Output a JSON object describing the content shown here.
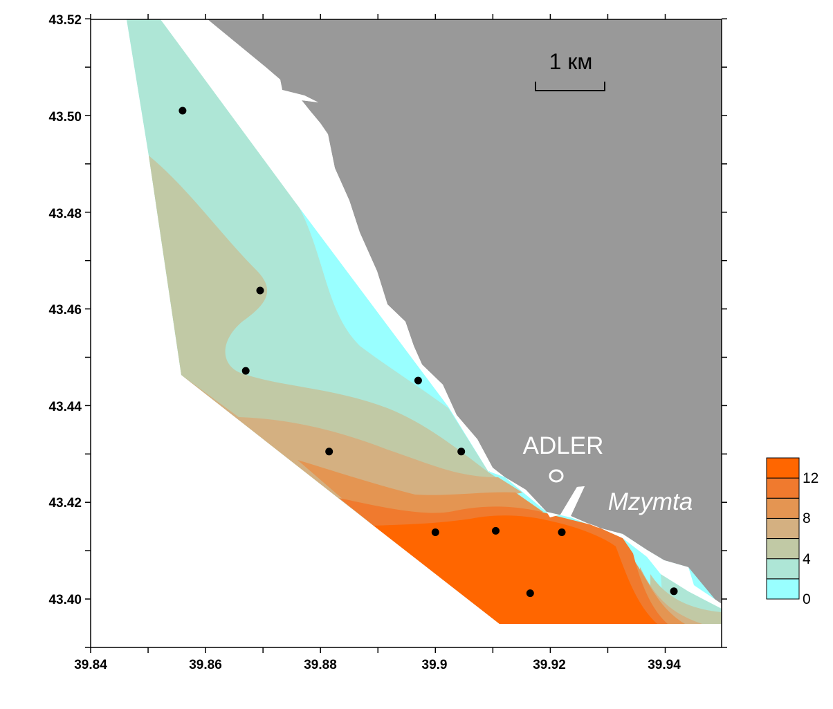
{
  "colors": {
    "land": "#999999",
    "background": "#ffffff",
    "frame": "#000000",
    "station": "#000000",
    "label_on_land": "#ffffff",
    "bands": [
      "#99ffff",
      "#aee6d6",
      "#c1c9a5",
      "#d4b081",
      "#e49552",
      "#f07a2e",
      "#ff6600"
    ]
  },
  "axes": {
    "x_ticks": [
      "39.84",
      "39.86",
      "39.88",
      "39.9",
      "39.92",
      "39.94"
    ],
    "y_ticks": [
      "43.52",
      "43.50",
      "43.48",
      "43.46",
      "43.44",
      "43.42",
      "43.40"
    ],
    "xlim": [
      39.84,
      39.95
    ],
    "ylim": [
      43.39,
      43.52
    ]
  },
  "legend": {
    "labels": [
      "12",
      "8",
      "4",
      "0"
    ],
    "colors_bottom_to_top": [
      "#99ffff",
      "#aee6d6",
      "#c1c9a5",
      "#d4b081",
      "#e49552",
      "#f07a2e",
      "#ff6600"
    ]
  },
  "annotations": {
    "town": "ADLER",
    "river": "Mzymta",
    "scale_bar": "1 км"
  },
  "stations": [
    {
      "lon": 39.856,
      "lat": 43.501
    },
    {
      "lon": 39.8695,
      "lat": 43.4638
    },
    {
      "lon": 39.867,
      "lat": 43.4472
    },
    {
      "lon": 39.897,
      "lat": 43.4452
    },
    {
      "lon": 39.8815,
      "lat": 43.4305
    },
    {
      "lon": 39.9045,
      "lat": 43.4305
    },
    {
      "lon": 39.9,
      "lat": 43.4138
    },
    {
      "lon": 39.9105,
      "lat": 43.4141
    },
    {
      "lon": 39.922,
      "lat": 43.4138
    },
    {
      "lon": 39.9165,
      "lat": 43.4012
    },
    {
      "lon": 39.9415,
      "lat": 43.4016
    }
  ]
}
